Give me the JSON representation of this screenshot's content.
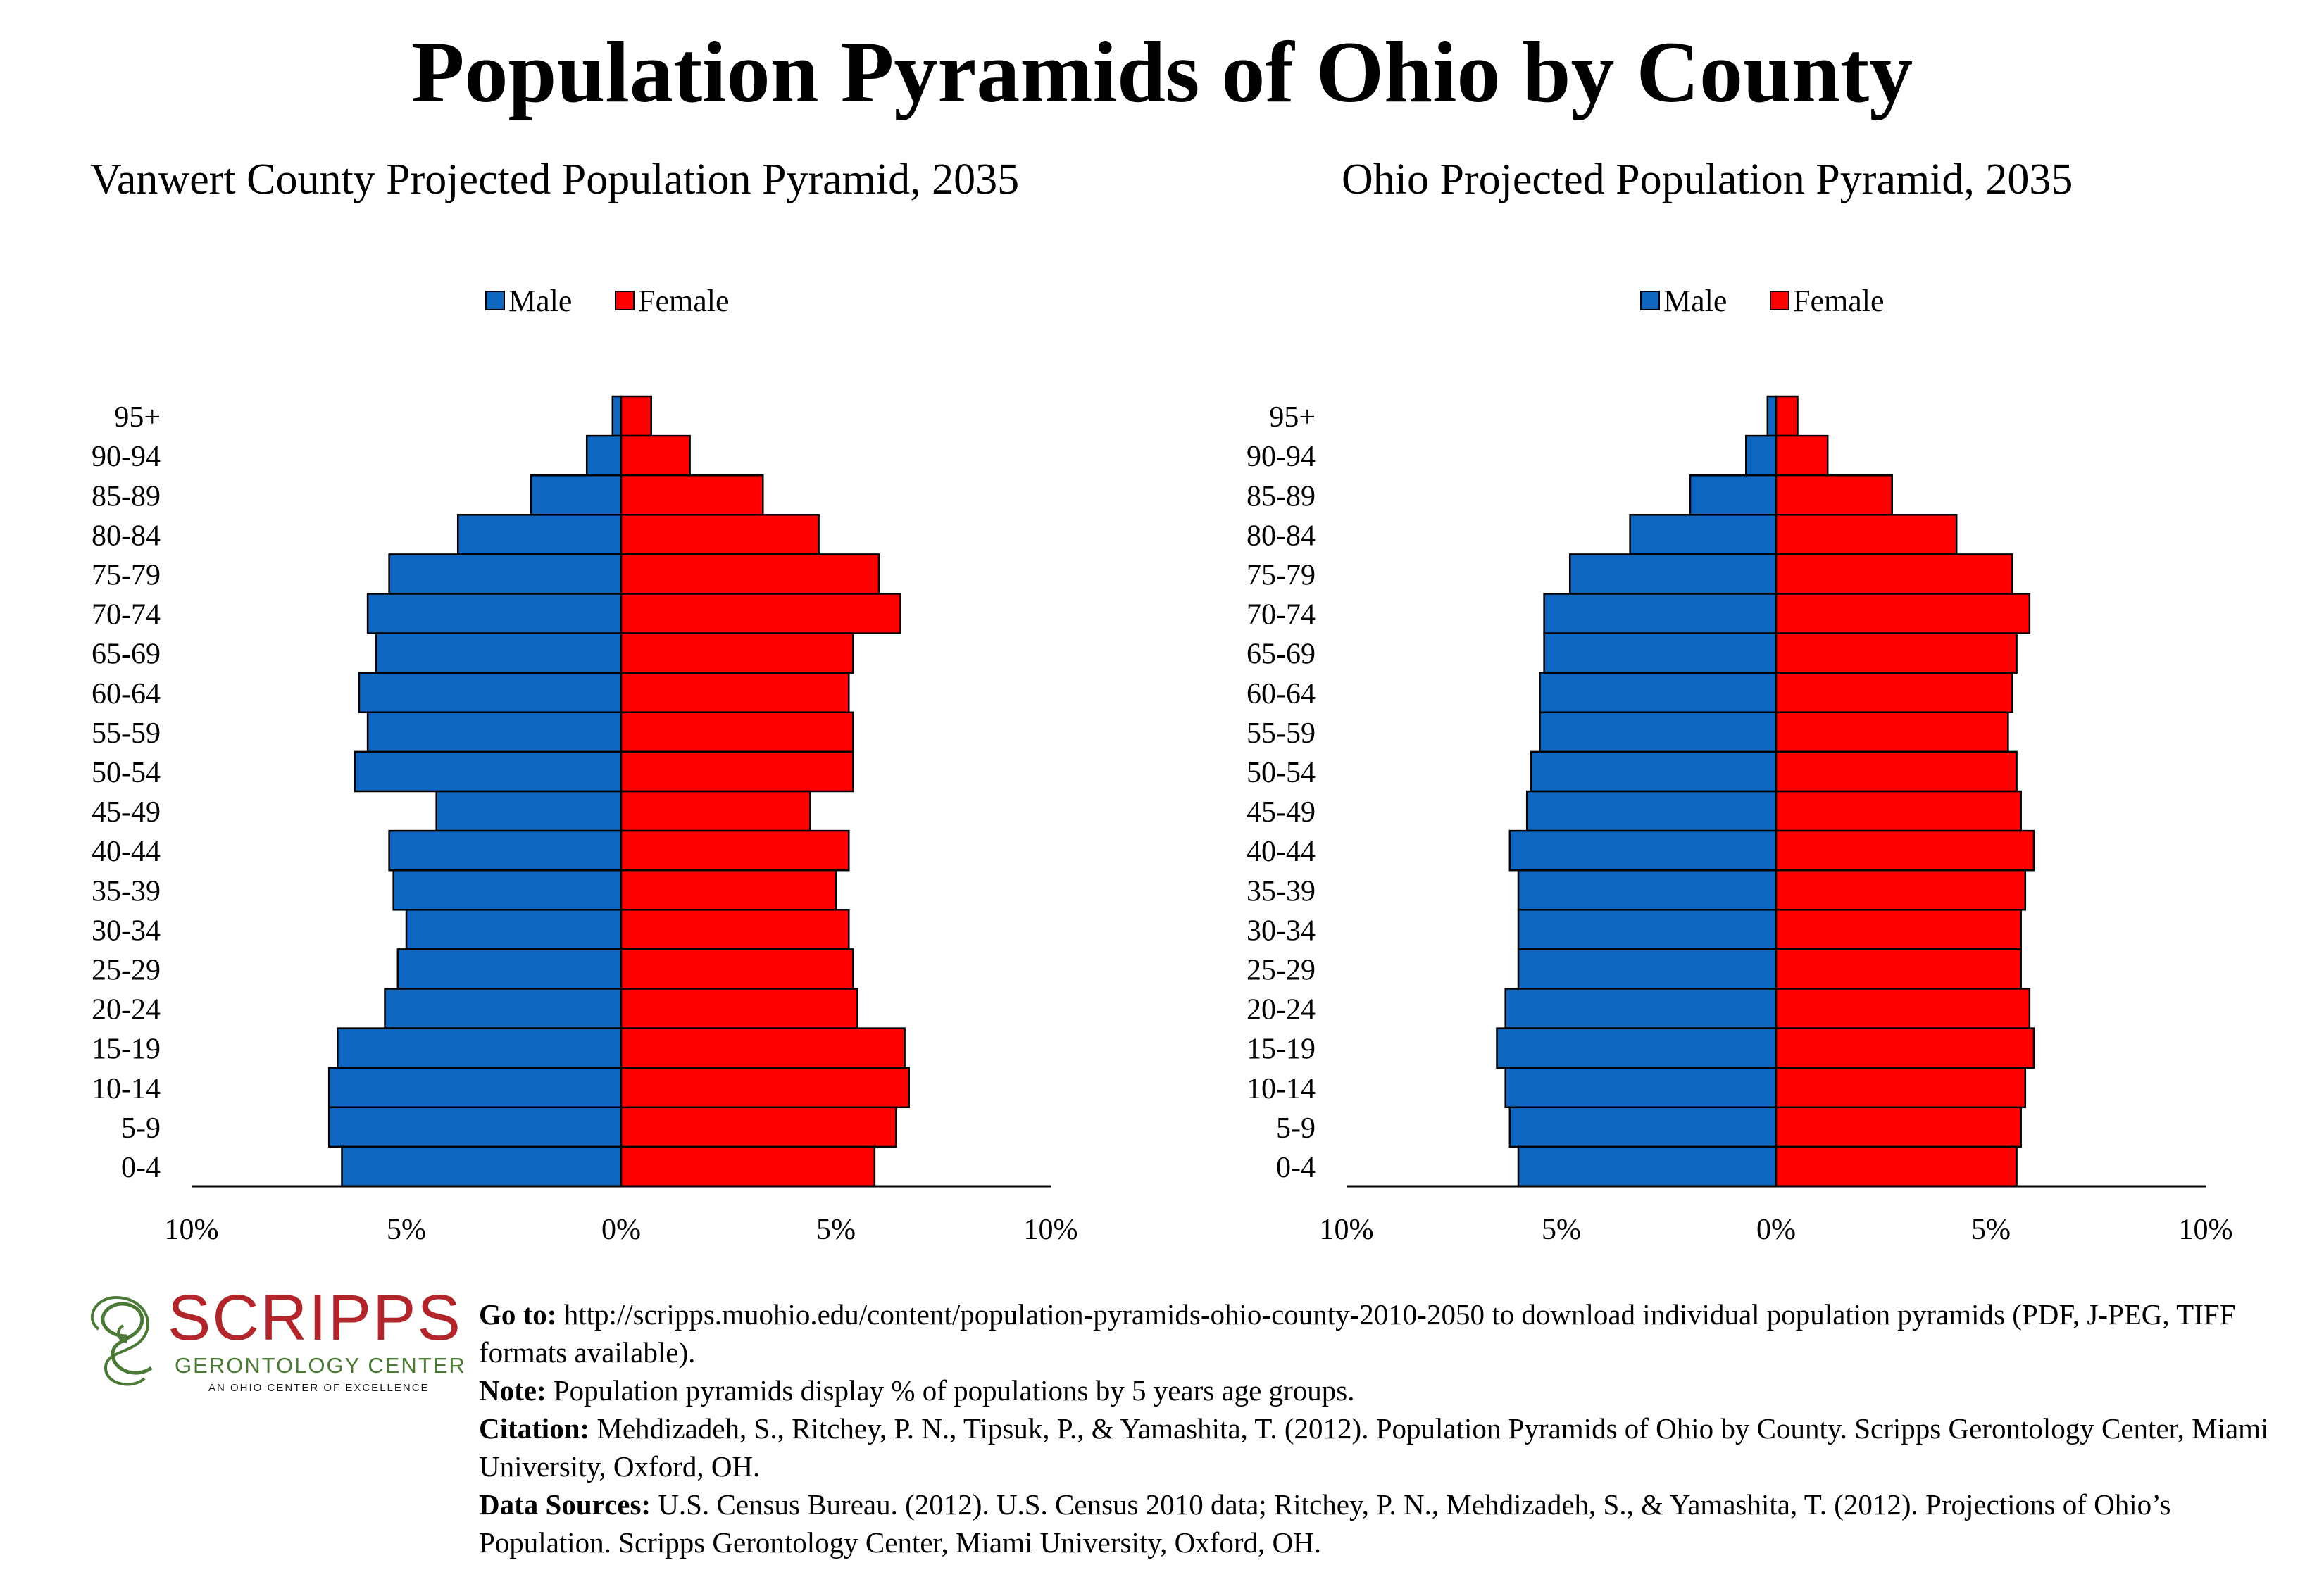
{
  "page": {
    "title": "Population Pyramids of Ohio by County"
  },
  "colors": {
    "male": "#0f66c1",
    "female": "#ff0000",
    "outline": "#000000",
    "logo_red": "#b2262b",
    "logo_green": "#4a7a35"
  },
  "legend": {
    "male": "Male",
    "female": "Female"
  },
  "chart_data": [
    {
      "type": "bar",
      "orientation": "horizontal-pyramid",
      "title": "Vanwert County Projected Population Pyramid, 2035",
      "categories": [
        "95+",
        "90-94",
        "85-89",
        "80-84",
        "75-79",
        "70-74",
        "65-69",
        "60-64",
        "55-59",
        "50-54",
        "45-49",
        "40-44",
        "35-39",
        "30-34",
        "25-29",
        "20-24",
        "15-19",
        "10-14",
        "5-9",
        "0-4"
      ],
      "series": [
        {
          "name": "Male",
          "values": [
            0.2,
            0.8,
            2.1,
            3.8,
            5.4,
            5.9,
            5.7,
            6.1,
            5.9,
            6.2,
            4.3,
            5.4,
            5.3,
            5.0,
            5.2,
            5.5,
            6.6,
            6.8,
            6.8,
            6.5
          ]
        },
        {
          "name": "Female",
          "values": [
            0.7,
            1.6,
            3.3,
            4.6,
            6.0,
            6.5,
            5.4,
            5.3,
            5.4,
            5.4,
            4.4,
            5.3,
            5.0,
            5.3,
            5.4,
            5.5,
            6.6,
            6.7,
            6.4,
            5.9
          ]
        }
      ],
      "xlim": [
        -10,
        10
      ],
      "xticks": [
        "10%",
        "5%",
        "0%",
        "5%",
        "10%"
      ],
      "legend_position": "top-center",
      "grid": false
    },
    {
      "type": "bar",
      "orientation": "horizontal-pyramid",
      "title": "Ohio Projected Population Pyramid, 2035",
      "categories": [
        "95+",
        "90-94",
        "85-89",
        "80-84",
        "75-79",
        "70-74",
        "65-69",
        "60-64",
        "55-59",
        "50-54",
        "45-49",
        "40-44",
        "35-39",
        "30-34",
        "25-29",
        "20-24",
        "15-19",
        "10-14",
        "5-9",
        "0-4"
      ],
      "series": [
        {
          "name": "Male",
          "values": [
            0.2,
            0.7,
            2.0,
            3.4,
            4.8,
            5.4,
            5.4,
            5.5,
            5.5,
            5.7,
            5.8,
            6.2,
            6.0,
            6.0,
            6.0,
            6.3,
            6.5,
            6.3,
            6.2,
            6.0
          ]
        },
        {
          "name": "Female",
          "values": [
            0.5,
            1.2,
            2.7,
            4.2,
            5.5,
            5.9,
            5.6,
            5.5,
            5.4,
            5.6,
            5.7,
            6.0,
            5.8,
            5.7,
            5.7,
            5.9,
            6.0,
            5.8,
            5.7,
            5.6
          ]
        }
      ],
      "xlim": [
        -10,
        10
      ],
      "xticks": [
        "10%",
        "5%",
        "0%",
        "5%",
        "10%"
      ],
      "legend_position": "top-center",
      "grid": false
    }
  ],
  "footer": {
    "logo": {
      "word": "SCRIPPS",
      "sub": "GERONTOLOGY CENTER",
      "tagline": "AN OHIO CENTER OF EXCELLENCE"
    },
    "notes": [
      {
        "label": "Go to:",
        "text": " http://scripps.muohio.edu/content/population-pyramids-ohio-county-2010-2050 to download individual population pyramids (PDF, J-PEG, TIFF formats available)."
      },
      {
        "label": "Note:",
        "text": " Population pyramids display % of populations by 5 years age groups."
      },
      {
        "label": "Citation:",
        "text": " Mehdizadeh, S., Ritchey, P. N., Tipsuk, P., & Yamashita, T. (2012). Population Pyramids of Ohio by County. Scripps Gerontology Center, Miami University, Oxford, OH."
      },
      {
        "label": "Data Sources:",
        "text": " U.S. Census Bureau. (2012). U.S. Census 2010 data; Ritchey, P. N., Mehdizadeh, S., & Yamashita, T. (2012). Projections of Ohio’s Population. Scripps Gerontology Center, Miami University, Oxford, OH."
      }
    ]
  }
}
